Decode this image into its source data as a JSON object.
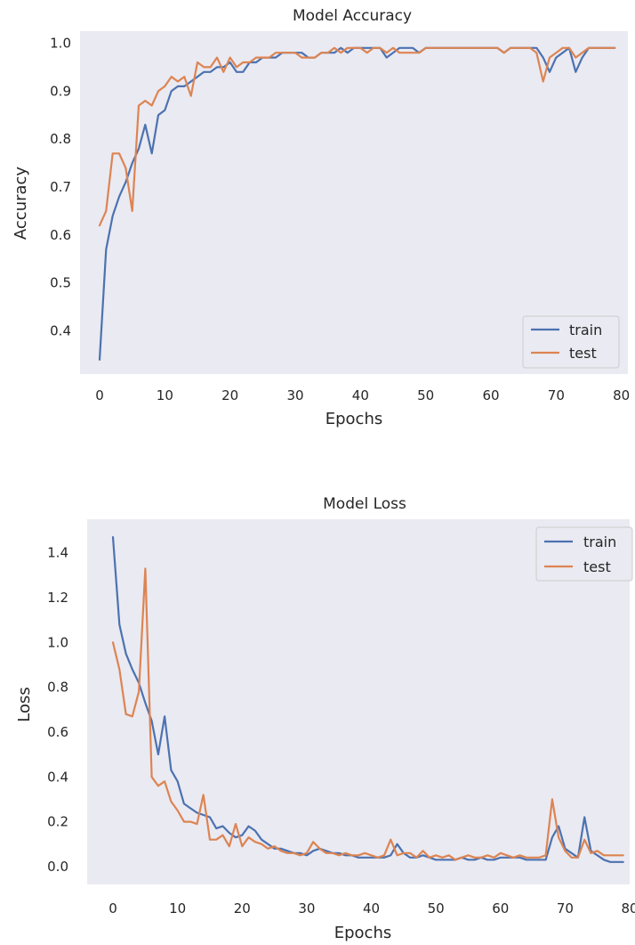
{
  "colors": {
    "train": "#4c72b0",
    "test": "#dd8452",
    "plot_background": "#eaeaf2",
    "text": "#262626"
  },
  "chart_data": [
    {
      "type": "line",
      "title": "Model Accuracy",
      "xlabel": "Epochs",
      "ylabel": "Accuracy",
      "xlim": [
        -3,
        81
      ],
      "ylim": [
        0.31,
        1.025
      ],
      "xticks": [
        0,
        10,
        20,
        30,
        40,
        50,
        60,
        70,
        80
      ],
      "xtick_labels": [
        "0",
        "10",
        "20",
        "30",
        "40",
        "50",
        "60",
        "70",
        "80"
      ],
      "yticks": [
        0.4,
        0.5,
        0.6,
        0.7,
        0.8,
        0.9,
        1.0
      ],
      "ytick_labels": [
        "0.4",
        "0.5",
        "0.6",
        "0.7",
        "0.8",
        "0.9",
        "1.0"
      ],
      "grid": false,
      "legend": "lower-right",
      "x": [
        0,
        1,
        2,
        3,
        4,
        5,
        6,
        7,
        8,
        9,
        10,
        11,
        12,
        13,
        14,
        15,
        16,
        17,
        18,
        19,
        20,
        21,
        22,
        23,
        24,
        25,
        26,
        27,
        28,
        29,
        30,
        31,
        32,
        33,
        34,
        35,
        36,
        37,
        38,
        39,
        40,
        41,
        42,
        43,
        44,
        45,
        46,
        47,
        48,
        49,
        50,
        51,
        52,
        53,
        54,
        55,
        56,
        57,
        58,
        59,
        60,
        61,
        62,
        63,
        64,
        65,
        66,
        67,
        68,
        69,
        70,
        71,
        72,
        73,
        74,
        75,
        76,
        77,
        78,
        79
      ],
      "series": [
        {
          "name": "train",
          "values": [
            0.34,
            0.57,
            0.64,
            0.68,
            0.71,
            0.75,
            0.78,
            0.83,
            0.77,
            0.85,
            0.86,
            0.9,
            0.91,
            0.91,
            0.92,
            0.93,
            0.94,
            0.94,
            0.95,
            0.95,
            0.96,
            0.94,
            0.94,
            0.96,
            0.96,
            0.97,
            0.97,
            0.97,
            0.98,
            0.98,
            0.98,
            0.98,
            0.97,
            0.97,
            0.98,
            0.98,
            0.98,
            0.99,
            0.98,
            0.99,
            0.99,
            0.99,
            0.99,
            0.99,
            0.97,
            0.98,
            0.99,
            0.99,
            0.99,
            0.98,
            0.99,
            0.99,
            0.99,
            0.99,
            0.99,
            0.99,
            0.99,
            0.99,
            0.99,
            0.99,
            0.99,
            0.99,
            0.98,
            0.99,
            0.99,
            0.99,
            0.99,
            0.99,
            0.97,
            0.94,
            0.97,
            0.98,
            0.99,
            0.94,
            0.97,
            0.99,
            0.99,
            0.99,
            0.99,
            0.99
          ]
        },
        {
          "name": "test",
          "values": [
            0.62,
            0.65,
            0.77,
            0.77,
            0.74,
            0.65,
            0.87,
            0.88,
            0.87,
            0.9,
            0.91,
            0.93,
            0.92,
            0.93,
            0.89,
            0.96,
            0.95,
            0.95,
            0.97,
            0.94,
            0.97,
            0.95,
            0.96,
            0.96,
            0.97,
            0.97,
            0.97,
            0.98,
            0.98,
            0.98,
            0.98,
            0.97,
            0.97,
            0.97,
            0.98,
            0.98,
            0.99,
            0.98,
            0.99,
            0.99,
            0.99,
            0.98,
            0.99,
            0.99,
            0.98,
            0.99,
            0.98,
            0.98,
            0.98,
            0.98,
            0.99,
            0.99,
            0.99,
            0.99,
            0.99,
            0.99,
            0.99,
            0.99,
            0.99,
            0.99,
            0.99,
            0.99,
            0.98,
            0.99,
            0.99,
            0.99,
            0.99,
            0.98,
            0.92,
            0.97,
            0.98,
            0.99,
            0.99,
            0.97,
            0.98,
            0.99,
            0.99,
            0.99,
            0.99,
            0.99
          ]
        }
      ]
    },
    {
      "type": "line",
      "title": "Model Loss",
      "xlabel": "Epochs",
      "ylabel": "Loss",
      "xlim": [
        -4,
        80
      ],
      "ylim": [
        -0.08,
        1.55
      ],
      "xticks": [
        0,
        10,
        20,
        30,
        40,
        50,
        60,
        70,
        80
      ],
      "xtick_labels": [
        "0",
        "10",
        "20",
        "30",
        "40",
        "50",
        "60",
        "70",
        "80"
      ],
      "yticks": [
        0.0,
        0.2,
        0.4,
        0.6,
        0.8,
        1.0,
        1.2,
        1.4
      ],
      "ytick_labels": [
        "0.0",
        "0.2",
        "0.4",
        "0.6",
        "0.8",
        "1.0",
        "1.2",
        "1.4"
      ],
      "grid": false,
      "legend": "upper-right",
      "x": [
        0,
        1,
        2,
        3,
        4,
        5,
        6,
        7,
        8,
        9,
        10,
        11,
        12,
        13,
        14,
        15,
        16,
        17,
        18,
        19,
        20,
        21,
        22,
        23,
        24,
        25,
        26,
        27,
        28,
        29,
        30,
        31,
        32,
        33,
        34,
        35,
        36,
        37,
        38,
        39,
        40,
        41,
        42,
        43,
        44,
        45,
        46,
        47,
        48,
        49,
        50,
        51,
        52,
        53,
        54,
        55,
        56,
        57,
        58,
        59,
        60,
        61,
        62,
        63,
        64,
        65,
        66,
        67,
        68,
        69,
        70,
        71,
        72,
        73,
        74,
        75,
        76,
        77,
        78,
        79
      ],
      "series": [
        {
          "name": "train",
          "values": [
            1.47,
            1.08,
            0.95,
            0.88,
            0.82,
            0.73,
            0.65,
            0.5,
            0.67,
            0.43,
            0.38,
            0.28,
            0.26,
            0.24,
            0.23,
            0.22,
            0.17,
            0.18,
            0.15,
            0.13,
            0.14,
            0.18,
            0.16,
            0.12,
            0.1,
            0.08,
            0.08,
            0.07,
            0.06,
            0.06,
            0.05,
            0.07,
            0.08,
            0.07,
            0.06,
            0.06,
            0.05,
            0.05,
            0.04,
            0.04,
            0.04,
            0.04,
            0.04,
            0.05,
            0.1,
            0.06,
            0.04,
            0.04,
            0.05,
            0.04,
            0.03,
            0.03,
            0.03,
            0.03,
            0.04,
            0.03,
            0.03,
            0.04,
            0.03,
            0.03,
            0.04,
            0.04,
            0.04,
            0.04,
            0.03,
            0.03,
            0.03,
            0.03,
            0.13,
            0.18,
            0.08,
            0.06,
            0.04,
            0.22,
            0.07,
            0.05,
            0.03,
            0.02,
            0.02,
            0.02
          ]
        },
        {
          "name": "test",
          "values": [
            1.0,
            0.88,
            0.68,
            0.67,
            0.78,
            1.33,
            0.4,
            0.36,
            0.38,
            0.29,
            0.25,
            0.2,
            0.2,
            0.19,
            0.32,
            0.12,
            0.12,
            0.14,
            0.09,
            0.19,
            0.09,
            0.13,
            0.11,
            0.1,
            0.08,
            0.09,
            0.07,
            0.06,
            0.06,
            0.05,
            0.06,
            0.11,
            0.08,
            0.06,
            0.06,
            0.05,
            0.06,
            0.05,
            0.05,
            0.06,
            0.05,
            0.04,
            0.05,
            0.12,
            0.05,
            0.06,
            0.06,
            0.04,
            0.07,
            0.04,
            0.05,
            0.04,
            0.05,
            0.03,
            0.04,
            0.05,
            0.04,
            0.04,
            0.05,
            0.04,
            0.06,
            0.05,
            0.04,
            0.05,
            0.04,
            0.04,
            0.04,
            0.05,
            0.3,
            0.13,
            0.07,
            0.04,
            0.04,
            0.12,
            0.06,
            0.07,
            0.05,
            0.05,
            0.05,
            0.05
          ]
        }
      ]
    }
  ]
}
